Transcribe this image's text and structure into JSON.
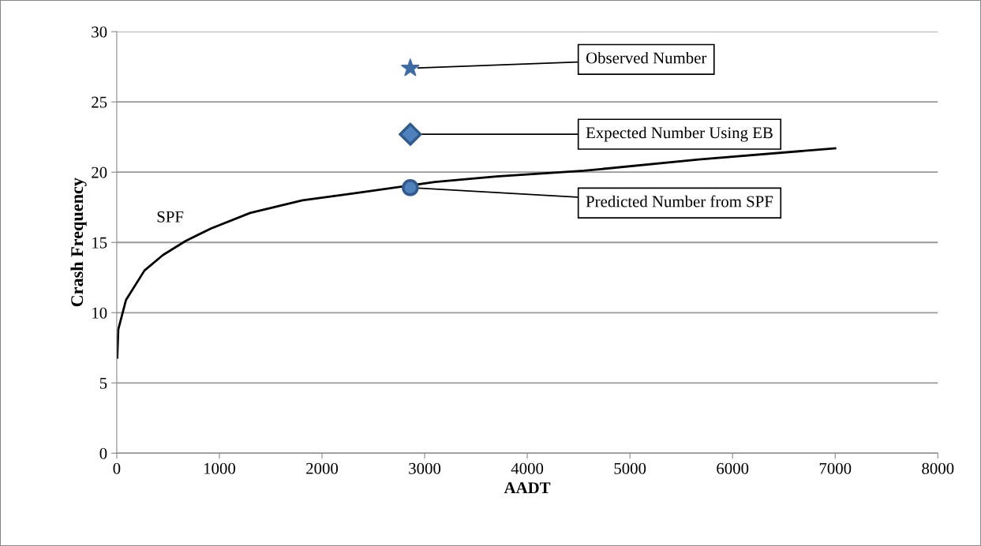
{
  "chart_data": {
    "type": "line",
    "xlabel": "AADT",
    "ylabel": "Crash Frequency",
    "series": [
      {
        "name": "SPF",
        "color": "#000000",
        "marker": "none",
        "x": [
          5,
          15,
          90,
          270,
          450,
          670,
          920,
          1300,
          1810,
          2320,
          3100,
          3700,
          4550,
          5670,
          7000
        ],
        "values": [
          6.8,
          8.8,
          10.9,
          13.0,
          14.1,
          15.1,
          16.0,
          17.1,
          18.0,
          18.5,
          19.3,
          19.7,
          20.1,
          20.9,
          21.7
        ]
      },
      {
        "name": "Observed Number",
        "type": "scatter",
        "color": "#3f6ba5",
        "marker": "star",
        "x": [
          2860
        ],
        "values": [
          27.4
        ]
      },
      {
        "name": "Expected Number Using EB",
        "type": "scatter",
        "color": "#4f81bd",
        "marker": "diamond",
        "x": [
          2860
        ],
        "values": [
          22.7
        ]
      },
      {
        "name": "Predicted Number from SPF",
        "type": "scatter",
        "color": "#4f81bd",
        "marker": "circle",
        "x": [
          2860
        ],
        "values": [
          18.9
        ]
      }
    ],
    "xlim": [
      0,
      8000
    ],
    "xticks": [
      0,
      1000,
      2000,
      3000,
      4000,
      5000,
      6000,
      7000,
      8000
    ],
    "ylim": [
      0,
      30
    ],
    "yticks": [
      0,
      5,
      10,
      15,
      20,
      25,
      30
    ],
    "grid": "y"
  }
}
